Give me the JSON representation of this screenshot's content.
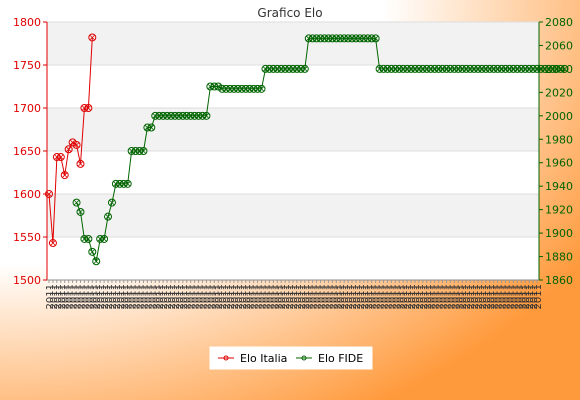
{
  "chart_data": {
    "type": "line",
    "title": "Grafico Elo",
    "colors": {
      "left_axis": "#e00000",
      "right_axis": "#006400",
      "italia": "#e00000",
      "fide": "#006400",
      "bg_gradient_start": "#ffffff",
      "bg_gradient_end": "#ff9933",
      "plot_band": "#f2f2f2"
    },
    "grid": true,
    "legend_placement": "bottom-center",
    "left_axis": {
      "ylim": [
        1500,
        1800
      ],
      "ticks": [
        "1500",
        "1550",
        "1600",
        "1650",
        "1700",
        "1750",
        "1800"
      ]
    },
    "right_axis": {
      "ylim": [
        1860,
        2080
      ],
      "ticks": [
        "1860",
        "1880",
        "1900",
        "1920",
        "1940",
        "1960",
        "1980",
        "2000",
        "2020",
        "2040",
        "2060",
        "2080"
      ]
    },
    "x_count": 125,
    "x_tick_label": "2011",
    "series": [
      {
        "name": "Elo Italia",
        "axis": "left",
        "start_index": 0,
        "values": [
          1600,
          1543,
          1643,
          1643,
          1622,
          1652,
          1660,
          1657,
          1635,
          1700,
          1700,
          1782
        ]
      },
      {
        "name": "Elo FIDE",
        "axis": "right",
        "start_index": 7,
        "values": [
          1926,
          1918,
          1895,
          1895,
          1884,
          1876,
          1895,
          1895,
          1914,
          1926,
          1942,
          1942,
          1942,
          1942,
          1970,
          1970,
          1970,
          1970,
          1990,
          1990,
          2000,
          2000,
          2000,
          2000,
          2000,
          2000,
          2000,
          2000,
          2000,
          2000,
          2000,
          2000,
          2000,
          2000,
          2025,
          2025,
          2025,
          2023,
          2023,
          2023,
          2023,
          2023,
          2023,
          2023,
          2023,
          2023,
          2023,
          2023,
          2040,
          2040,
          2040,
          2040,
          2040,
          2040,
          2040,
          2040,
          2040,
          2040,
          2040,
          2066,
          2066,
          2066,
          2066,
          2066,
          2066,
          2066,
          2066,
          2066,
          2066,
          2066,
          2066,
          2066,
          2066,
          2066,
          2066,
          2066,
          2066,
          2040,
          2040,
          2040,
          2040,
          2040,
          2040,
          2040,
          2040,
          2040,
          2040,
          2040,
          2040,
          2040,
          2040,
          2040,
          2040,
          2040,
          2040,
          2040,
          2040,
          2040,
          2040,
          2040,
          2040,
          2040,
          2040,
          2040,
          2040,
          2040,
          2040,
          2040,
          2040,
          2040,
          2040,
          2040,
          2040,
          2040,
          2040,
          2040,
          2040,
          2040,
          2040,
          2040,
          2040,
          2040,
          2040,
          2040,
          2040
        ]
      }
    ]
  }
}
